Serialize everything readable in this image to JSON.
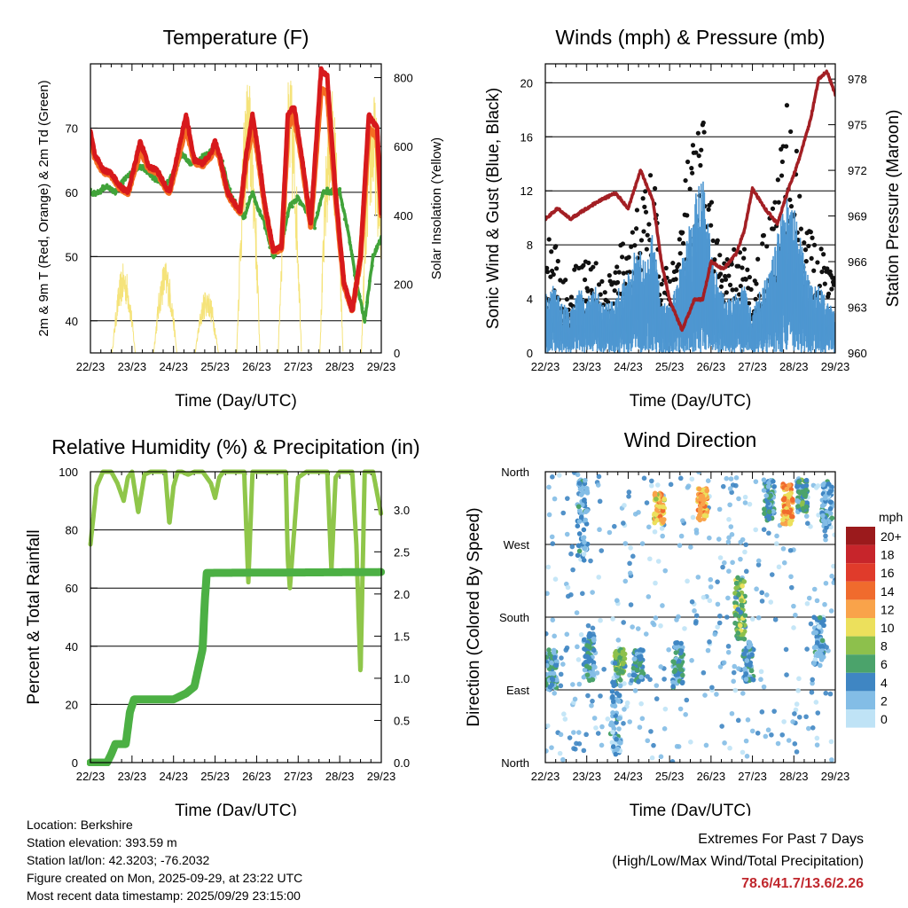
{
  "chart_data": [
    {
      "type": "line",
      "title": "Temperature (F)",
      "xlabel": "Time (Day/UTC)",
      "ylabel": "2m & 9m T (Red, Orange) & 2m Td (Green)",
      "ylabel_right": "Solar Insolation (Yellow)",
      "x_ticks": [
        "22/23",
        "23/23",
        "24/23",
        "25/23",
        "26/23",
        "27/23",
        "28/23",
        "29/23"
      ],
      "y_ticks": [
        "40",
        "50",
        "60",
        "70"
      ],
      "y2_ticks": [
        "0",
        "200",
        "400",
        "600",
        "800"
      ],
      "ylim": [
        35,
        80
      ],
      "y2lim": [
        0,
        840
      ],
      "series": [
        {
          "name": "2m T",
          "color": "#d7191c",
          "x": [
            0,
            0.1,
            0.3,
            0.5,
            0.7,
            0.9,
            1.0,
            1.2,
            1.4,
            1.6,
            1.8,
            1.9,
            2.1,
            2.3,
            2.5,
            2.7,
            2.9,
            3.0,
            3.1,
            3.3,
            3.6,
            3.75,
            3.9,
            4.0,
            4.2,
            4.4,
            4.6,
            4.75,
            4.9,
            5.1,
            5.3,
            5.55,
            5.7,
            5.9,
            6.1,
            6.3,
            6.5,
            6.7,
            6.9,
            7.0
          ],
          "values": [
            69.5,
            66,
            63.5,
            63,
            61,
            60,
            62.5,
            68,
            64,
            63.5,
            61,
            60,
            66,
            72,
            65,
            64.5,
            66,
            68,
            66,
            60,
            57,
            66,
            72,
            68,
            58,
            51,
            51.5,
            72,
            73.5,
            65,
            55,
            79,
            78,
            60,
            46,
            41.5,
            50,
            72,
            70,
            57
          ]
        },
        {
          "name": "9m T",
          "color": "#f46d22",
          "x": [
            0,
            0.1,
            0.3,
            0.5,
            0.7,
            0.9,
            1.0,
            1.2,
            1.4,
            1.6,
            1.8,
            1.9,
            2.1,
            2.3,
            2.5,
            2.7,
            2.9,
            3.0,
            3.1,
            3.3,
            3.6,
            3.75,
            3.9,
            4.0,
            4.2,
            4.4,
            4.6,
            4.75,
            4.9,
            5.1,
            5.3,
            5.55,
            5.7,
            5.9,
            6.1,
            6.3,
            6.5,
            6.7,
            6.9,
            7.0
          ],
          "values": [
            69,
            65.5,
            63.2,
            62.7,
            60.7,
            59.8,
            62,
            66.5,
            63.7,
            63.2,
            60.8,
            59.8,
            65,
            70,
            64.7,
            64.2,
            65.6,
            67,
            65.5,
            59.6,
            56.8,
            65,
            70,
            67,
            57.6,
            50.8,
            51.2,
            70,
            72,
            64.5,
            54.6,
            76,
            75.5,
            59,
            45.6,
            41.6,
            49.6,
            70,
            68.5,
            56.5
          ]
        },
        {
          "name": "2m Td",
          "color": "#41a33a",
          "x": [
            0,
            0.2,
            0.4,
            0.6,
            0.8,
            1.0,
            1.2,
            1.4,
            1.6,
            1.8,
            2.0,
            2.2,
            2.4,
            2.6,
            2.8,
            3.0,
            3.2,
            3.4,
            3.6,
            3.7,
            3.8,
            3.9,
            4.0,
            4.2,
            4.4,
            4.6,
            4.8,
            5.0,
            5.2,
            5.4,
            5.6,
            5.8,
            6.0,
            6.2,
            6.4,
            6.5,
            6.6,
            6.8,
            7.0
          ],
          "values": [
            60,
            60,
            61,
            60,
            62,
            63,
            64,
            63,
            62,
            61,
            63,
            66,
            64.5,
            65,
            66,
            67,
            64,
            59,
            57,
            56,
            58,
            60,
            58,
            55,
            50,
            52,
            58,
            59,
            57,
            55,
            60,
            60,
            60,
            54,
            46,
            43,
            40,
            50,
            53
          ]
        },
        {
          "name": "Solar Insolation",
          "color": "#f5e37a",
          "axis": "right",
          "peaks_x": [
            0.8,
            1.8,
            2.8,
            3.8,
            4.8,
            5.8,
            6.8
          ],
          "peaks": [
            260,
            270,
            190,
            810,
            810,
            780,
            770
          ]
        }
      ]
    },
    {
      "type": "scatter",
      "title": "Winds (mph) & Pressure (mb)",
      "xlabel": "Time (Day/UTC)",
      "ylabel": "Sonic Wind & Gust (Blue, Black)",
      "ylabel_right": "Station Pressure (Maroon)",
      "x_ticks": [
        "22/23",
        "23/23",
        "24/23",
        "25/23",
        "26/23",
        "27/23",
        "28/23",
        "29/23"
      ],
      "y_ticks": [
        "0",
        "4",
        "8",
        "12",
        "16",
        "20"
      ],
      "y2_ticks": [
        "960",
        "963",
        "966",
        "969",
        "972",
        "975",
        "978"
      ],
      "ylim": [
        0,
        21.4
      ],
      "y2lim": [
        960,
        979
      ],
      "series": [
        {
          "name": "Station Pressure",
          "color": "#a31f24",
          "x": [
            0,
            0.3,
            0.6,
            1.0,
            1.3,
            1.7,
            2.0,
            2.3,
            2.6,
            2.8,
            3.0,
            3.3,
            3.6,
            3.8,
            4.0,
            4.3,
            4.6,
            4.8,
            5.0,
            5.3,
            5.6,
            5.9,
            6.1,
            6.4,
            6.6,
            6.8,
            7.0
          ],
          "values": [
            968.8,
            969.5,
            968.8,
            969.5,
            970,
            970.5,
            969.5,
            972,
            970,
            966,
            963.5,
            961.5,
            963.5,
            963.5,
            966,
            965.5,
            966.5,
            968,
            970.8,
            969.5,
            968.5,
            971,
            972.5,
            975.3,
            978,
            978.5,
            977
          ]
        },
        {
          "name": "Sonic Wind",
          "color": "#4e97d1",
          "envelope": [
            4.5,
            5,
            4,
            3,
            5,
            4,
            5,
            3.5,
            4,
            5,
            6,
            8,
            7,
            9,
            4,
            3.5,
            6,
            8,
            12,
            13,
            8,
            5,
            4,
            4.5,
            5,
            3,
            5,
            6,
            9,
            12,
            11,
            8,
            5,
            5,
            4,
            3
          ]
        },
        {
          "name": "Gust",
          "color": "#111111",
          "envelope": [
            8,
            10,
            6,
            5,
            8,
            7,
            7,
            5,
            6,
            8,
            9,
            11,
            12,
            14,
            7,
            6,
            9,
            14,
            16,
            18,
            12,
            8,
            7,
            8,
            8,
            5,
            9,
            10,
            14,
            19,
            17,
            12,
            9,
            8,
            7,
            6
          ]
        }
      ]
    },
    {
      "type": "line",
      "title": "Relative Humidity (%) & Precipitation (in)",
      "xlabel": "Time (Day/UTC)",
      "ylabel": "Percent & Total Rainfall",
      "x_ticks": [
        "22/23",
        "23/23",
        "24/23",
        "25/23",
        "26/23",
        "27/23",
        "28/23",
        "29/23"
      ],
      "y_ticks": [
        "0",
        "20",
        "40",
        "60",
        "80",
        "100"
      ],
      "y2_ticks": [
        "0.0",
        "0.5",
        "1.0",
        "1.5",
        "2.0",
        "2.5",
        "3.0"
      ],
      "ylim": [
        0,
        100
      ],
      "y2lim": [
        0,
        3.45
      ],
      "series": [
        {
          "name": "Relative Humidity",
          "color": "#8fc64a",
          "x": [
            0,
            0.15,
            0.3,
            0.5,
            0.65,
            0.8,
            0.9,
            1.0,
            1.15,
            1.3,
            1.45,
            1.6,
            1.8,
            1.9,
            2.0,
            2.1,
            2.2,
            2.35,
            2.5,
            2.7,
            2.9,
            3.0,
            3.1,
            3.2,
            3.4,
            3.5,
            3.7,
            3.8,
            3.9,
            4.0,
            4.1,
            4.2,
            4.3,
            4.5,
            4.7,
            4.75,
            4.8,
            5.0,
            5.2,
            5.3,
            5.4,
            5.5,
            5.7,
            5.8,
            5.9,
            6.0,
            6.2,
            6.3,
            6.4,
            6.5,
            6.6,
            6.8,
            7.0
          ],
          "values": [
            75,
            95,
            100,
            100,
            96,
            90,
            98,
            100,
            86,
            99,
            100,
            100,
            100,
            82,
            95,
            100,
            100,
            99,
            100,
            100,
            96,
            91,
            98,
            100,
            100,
            100,
            100,
            62,
            100,
            100,
            100,
            100,
            100,
            100,
            100,
            70,
            60,
            98,
            100,
            100,
            100,
            100,
            100,
            66,
            98,
            100,
            100,
            100,
            75,
            30,
            100,
            100,
            85
          ]
        },
        {
          "name": "Total Precipitation",
          "color": "#4cb044",
          "axis": "right",
          "x": [
            0,
            0.4,
            0.5,
            0.6,
            0.85,
            0.95,
            1.05,
            2.0,
            2.3,
            2.5,
            2.7,
            2.75,
            2.8,
            7.0
          ],
          "values": [
            0,
            0,
            0.1,
            0.22,
            0.22,
            0.6,
            0.75,
            0.75,
            0.82,
            0.9,
            1.35,
            1.9,
            2.25,
            2.26
          ]
        }
      ]
    },
    {
      "type": "scatter",
      "title": "Wind Direction",
      "xlabel": "Time (Day/UTC)",
      "ylabel": "Direction (Colored By Speed)",
      "x_ticks": [
        "22/23",
        "23/23",
        "24/23",
        "25/23",
        "26/23",
        "27/23",
        "28/23",
        "29/23"
      ],
      "y_ticks": [
        "North",
        "East",
        "South",
        "West",
        "North"
      ],
      "ylim": [
        0,
        360
      ],
      "colorbar": {
        "title": "mph",
        "labels": [
          "20+",
          "18",
          "16",
          "14",
          "12",
          "10",
          "8",
          "6",
          "4",
          "2",
          "0"
        ],
        "colors": [
          "#9b1a1c",
          "#c7252b",
          "#e03b2b",
          "#f06b2d",
          "#f9a34a",
          "#ece05c",
          "#8dc04c",
          "#4ba36b",
          "#3f86c3",
          "#83bde6",
          "#bfe3f6"
        ]
      },
      "clusters": [
        {
          "day": 0.15,
          "dir": 115,
          "speed": 4,
          "spread_dir": 25
        },
        {
          "day": 0.9,
          "dir": 300,
          "speed": 3,
          "spread_dir": 50
        },
        {
          "day": 1.05,
          "dir": 130,
          "speed": 4,
          "spread_dir": 30
        },
        {
          "day": 1.7,
          "dir": 70,
          "speed": 3,
          "spread_dir": 60
        },
        {
          "day": 1.8,
          "dir": 125,
          "speed": 7,
          "spread_dir": 15
        },
        {
          "day": 2.25,
          "dir": 120,
          "speed": 4,
          "spread_dir": 20
        },
        {
          "day": 2.75,
          "dir": 315,
          "speed": 11,
          "spread_dir": 20
        },
        {
          "day": 3.2,
          "dir": 120,
          "speed": 4,
          "spread_dir": 30
        },
        {
          "day": 3.8,
          "dir": 320,
          "speed": 12,
          "spread_dir": 20
        },
        {
          "day": 4.7,
          "dir": 190,
          "speed": 7,
          "spread_dir": 40
        },
        {
          "day": 4.9,
          "dir": 125,
          "speed": 4,
          "spread_dir": 25
        },
        {
          "day": 5.4,
          "dir": 325,
          "speed": 4,
          "spread_dir": 25
        },
        {
          "day": 5.85,
          "dir": 320,
          "speed": 12,
          "spread_dir": 25
        },
        {
          "day": 6.2,
          "dir": 330,
          "speed": 5,
          "spread_dir": 20
        },
        {
          "day": 6.8,
          "dir": 320,
          "speed": 3,
          "spread_dir": 30
        },
        {
          "day": 6.6,
          "dir": 150,
          "speed": 3,
          "spread_dir": 30
        }
      ]
    }
  ],
  "info": {
    "location": "Location: Berkshire",
    "elevation": "Station elevation: 393.59 m",
    "latlon": "Station lat/lon: 42.3203; -76.2032",
    "created": "Figure created on Mon, 2025-09-29, at 23:22 UTC",
    "recent": "Most recent data timestamp: 2025/09/29 23:15:00"
  },
  "extremes": {
    "title": "Extremes For Past 7 Days",
    "subtitle": "(High/Low/Max Wind/Total Precipitation)",
    "values": "78.6/41.7/13.6/2.26"
  }
}
